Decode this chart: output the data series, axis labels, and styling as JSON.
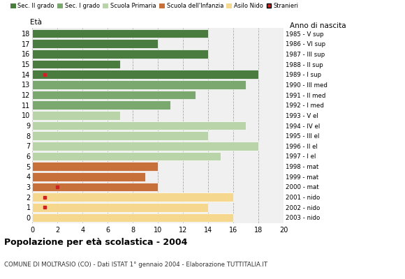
{
  "ages": [
    18,
    17,
    16,
    15,
    14,
    13,
    12,
    11,
    10,
    9,
    8,
    7,
    6,
    5,
    4,
    3,
    2,
    1,
    0
  ],
  "anno_nascita": [
    "1985 - V sup",
    "1986 - VI sup",
    "1987 - III sup",
    "1988 - II sup",
    "1989 - I sup",
    "1990 - III med",
    "1991 - II med",
    "1992 - I med",
    "1993 - V el",
    "1994 - IV el",
    "1995 - III el",
    "1996 - II el",
    "1997 - I el",
    "1998 - mat",
    "1999 - mat",
    "2000 - mat",
    "2001 - nido",
    "2002 - nido",
    "2003 - nido"
  ],
  "bar_values": [
    14,
    10,
    14,
    7,
    18,
    17,
    13,
    11,
    7,
    17,
    14,
    18,
    15,
    10,
    9,
    10,
    16,
    14,
    16
  ],
  "bar_colors": [
    "#4a7c3f",
    "#4a7c3f",
    "#4a7c3f",
    "#4a7c3f",
    "#4a7c3f",
    "#7aa86e",
    "#7aa86e",
    "#7aa86e",
    "#b8d4a8",
    "#b8d4a8",
    "#b8d4a8",
    "#b8d4a8",
    "#b8d4a8",
    "#c8703a",
    "#c8703a",
    "#c8703a",
    "#f5d78e",
    "#f5d78e",
    "#f5d78e"
  ],
  "stranieri_data": {
    "14": 1,
    "3": 2,
    "2": 1,
    "1": 1
  },
  "legend_labels": [
    "Sec. II grado",
    "Sec. I grado",
    "Scuola Primaria",
    "Scuola dell'Infanzia",
    "Asilo Nido",
    "Stranieri"
  ],
  "legend_colors": [
    "#4a7c3f",
    "#7aa86e",
    "#b8d4a8",
    "#c8703a",
    "#f5d78e",
    "#cc2222"
  ],
  "title": "Popolazione per età scolastica - 2004",
  "subtitle": "COMUNE DI MOLTRASIO (CO) - Dati ISTAT 1° gennaio 2004 - Elaborazione TUTTITALIA.IT",
  "ylabel_left": "Età",
  "ylabel_right": "Anno di nascita",
  "xlim": [
    0,
    20
  ],
  "xticks": [
    0,
    2,
    4,
    6,
    8,
    10,
    12,
    14,
    16,
    18,
    20
  ],
  "bg_color": "#ffffff",
  "plot_bg_color": "#f0f0f0"
}
